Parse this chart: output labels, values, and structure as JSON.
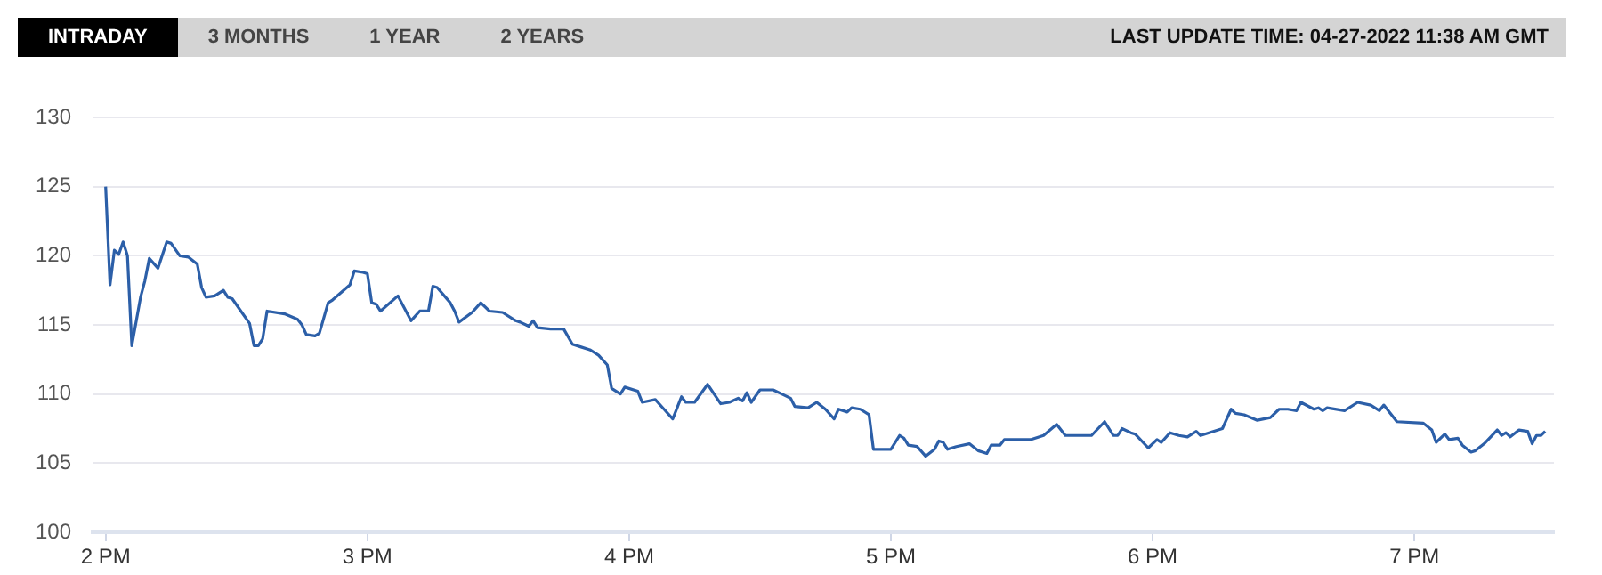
{
  "chart_data": {
    "type": "line",
    "annotations": [
      "INTRADAY",
      "3 MONTHS",
      "1 YEAR",
      "2 YEARS",
      "LAST UPDATE TIME: 04-27-2022 11:38 AM GMT"
    ],
    "xlim": [
      "2022-04-27T13:57",
      "2022-04-27T19:32"
    ],
    "xticks": [
      {
        "value": "2022-04-27T14:00",
        "label": "2 PM"
      },
      {
        "value": "2022-04-27T15:00",
        "label": "3 PM"
      },
      {
        "value": "2022-04-27T16:00",
        "label": "4 PM"
      },
      {
        "value": "2022-04-27T17:00",
        "label": "5 PM"
      },
      {
        "value": "2022-04-27T18:00",
        "label": "6 PM"
      },
      {
        "value": "2022-04-27T19:00",
        "label": "7 PM"
      }
    ],
    "ylim": [
      100,
      130
    ],
    "yticks": [
      100,
      105,
      110,
      115,
      120,
      125,
      130
    ],
    "grid": "y",
    "marker": "none",
    "line_style": "solid",
    "series": [
      {
        "color": "#2c5fa8",
        "x": [
          "2022-04-27T14:00",
          "2022-04-27T14:01",
          "2022-04-27T14:02",
          "2022-04-27T14:03",
          "2022-04-27T14:04",
          "2022-04-27T14:05",
          "2022-04-27T14:06",
          "2022-04-27T14:08",
          "2022-04-27T14:09",
          "2022-04-27T14:10",
          "2022-04-27T14:12",
          "2022-04-27T14:14",
          "2022-04-27T14:15",
          "2022-04-27T14:17",
          "2022-04-27T14:19",
          "2022-04-27T14:21",
          "2022-04-27T14:22",
          "2022-04-27T14:23",
          "2022-04-27T14:25",
          "2022-04-27T14:27",
          "2022-04-27T14:28",
          "2022-04-27T14:29",
          "2022-04-27T14:33",
          "2022-04-27T14:34",
          "2022-04-27T14:35",
          "2022-04-27T14:36",
          "2022-04-27T14:37",
          "2022-04-27T14:41",
          "2022-04-27T14:44",
          "2022-04-27T14:45",
          "2022-04-27T14:46",
          "2022-04-27T14:48",
          "2022-04-27T14:49",
          "2022-04-27T14:51",
          "2022-04-27T14:52",
          "2022-04-27T14:56",
          "2022-04-27T14:57",
          "2022-04-27T14:59",
          "2022-04-27T15:00",
          "2022-04-27T15:01",
          "2022-04-27T15:02",
          "2022-04-27T15:03",
          "2022-04-27T15:07",
          "2022-04-27T15:10",
          "2022-04-27T15:12",
          "2022-04-27T15:14",
          "2022-04-27T15:15",
          "2022-04-27T15:16",
          "2022-04-27T15:19",
          "2022-04-27T15:20",
          "2022-04-27T15:21",
          "2022-04-27T15:24",
          "2022-04-27T15:26",
          "2022-04-27T15:28",
          "2022-04-27T15:31",
          "2022-04-27T15:34",
          "2022-04-27T15:35",
          "2022-04-27T15:37",
          "2022-04-27T15:38",
          "2022-04-27T15:39",
          "2022-04-27T15:42",
          "2022-04-27T15:45",
          "2022-04-27T15:47",
          "2022-04-27T15:49",
          "2022-04-27T15:51",
          "2022-04-27T15:53",
          "2022-04-27T15:55",
          "2022-04-27T15:56",
          "2022-04-27T15:58",
          "2022-04-27T15:59",
          "2022-04-27T16:02",
          "2022-04-27T16:03",
          "2022-04-27T16:06",
          "2022-04-27T16:08",
          "2022-04-27T16:10",
          "2022-04-27T16:12",
          "2022-04-27T16:13",
          "2022-04-27T16:15",
          "2022-04-27T16:18",
          "2022-04-27T16:21",
          "2022-04-27T16:23",
          "2022-04-27T16:25",
          "2022-04-27T16:26",
          "2022-04-27T16:27",
          "2022-04-27T16:28",
          "2022-04-27T16:30",
          "2022-04-27T16:33",
          "2022-04-27T16:35",
          "2022-04-27T16:37",
          "2022-04-27T16:38",
          "2022-04-27T16:41",
          "2022-04-27T16:43",
          "2022-04-27T16:45",
          "2022-04-27T16:47",
          "2022-04-27T16:48",
          "2022-04-27T16:50",
          "2022-04-27T16:51",
          "2022-04-27T16:53",
          "2022-04-27T16:55",
          "2022-04-27T16:56",
          "2022-04-27T17:00",
          "2022-04-27T17:02",
          "2022-04-27T17:03",
          "2022-04-27T17:04",
          "2022-04-27T17:06",
          "2022-04-27T17:08",
          "2022-04-27T17:10",
          "2022-04-27T17:11",
          "2022-04-27T17:12",
          "2022-04-27T17:13",
          "2022-04-27T17:15",
          "2022-04-27T17:18",
          "2022-04-27T17:20",
          "2022-04-27T17:22",
          "2022-04-27T17:23",
          "2022-04-27T17:25",
          "2022-04-27T17:26",
          "2022-04-27T17:32",
          "2022-04-27T17:35",
          "2022-04-27T17:38",
          "2022-04-27T17:40",
          "2022-04-27T17:46",
          "2022-04-27T17:49",
          "2022-04-27T17:51",
          "2022-04-27T17:52",
          "2022-04-27T17:53",
          "2022-04-27T17:55",
          "2022-04-27T17:56",
          "2022-04-27T17:59",
          "2022-04-27T18:01",
          "2022-04-27T18:02",
          "2022-04-27T18:04",
          "2022-04-27T18:06",
          "2022-04-27T18:08",
          "2022-04-27T18:10",
          "2022-04-27T18:11",
          "2022-04-27T18:16",
          "2022-04-27T18:18",
          "2022-04-27T18:19",
          "2022-04-27T18:21",
          "2022-04-27T18:24",
          "2022-04-27T18:27",
          "2022-04-27T18:29",
          "2022-04-27T18:31",
          "2022-04-27T18:33",
          "2022-04-27T18:34",
          "2022-04-27T18:37",
          "2022-04-27T18:38",
          "2022-04-27T18:39",
          "2022-04-27T18:40",
          "2022-04-27T18:44",
          "2022-04-27T18:47",
          "2022-04-27T18:50",
          "2022-04-27T18:52",
          "2022-04-27T18:53",
          "2022-04-27T18:56",
          "2022-04-27T19:02",
          "2022-04-27T19:04",
          "2022-04-27T19:05",
          "2022-04-27T19:07",
          "2022-04-27T19:08",
          "2022-04-27T19:10",
          "2022-04-27T19:11",
          "2022-04-27T19:13",
          "2022-04-27T19:14",
          "2022-04-27T19:16",
          "2022-04-27T19:19",
          "2022-04-27T19:20",
          "2022-04-27T19:21",
          "2022-04-27T19:22",
          "2022-04-27T19:24",
          "2022-04-27T19:26",
          "2022-04-27T19:27",
          "2022-04-27T19:28",
          "2022-04-27T19:29",
          "2022-04-27T19:30"
        ],
        "values": [
          125,
          117.9,
          120.4,
          120.1,
          121,
          120,
          113.5,
          117,
          118.2,
          119.8,
          119.1,
          121,
          120.9,
          120,
          119.9,
          119.4,
          117.7,
          117,
          117.1,
          117.5,
          117,
          116.9,
          115.1,
          113.5,
          113.5,
          114.0,
          116.0,
          115.8,
          115.4,
          115.0,
          114.3,
          114.2,
          114.4,
          116.6,
          116.8,
          117.9,
          118.9,
          118.8,
          118.7,
          116.6,
          116.5,
          116,
          117.1,
          115.3,
          116,
          116,
          117.8,
          117.7,
          116.6,
          116,
          115.2,
          115.9,
          116.6,
          116,
          115.9,
          115.3,
          115.2,
          114.9,
          115.3,
          114.8,
          114.7,
          114.7,
          113.6,
          113.4,
          113.2,
          112.8,
          112.1,
          110.4,
          110.0,
          110.5,
          110.2,
          109.4,
          109.6,
          108.9,
          108.2,
          109.8,
          109.4,
          109.4,
          110.7,
          109.3,
          109.4,
          109.7,
          109.5,
          110.1,
          109.4,
          110.3,
          110.3,
          110.0,
          109.7,
          109.1,
          109.0,
          109.4,
          108.9,
          108.2,
          108.9,
          108.7,
          109.0,
          108.9,
          108.5,
          106.0,
          106.0,
          107.0,
          106.8,
          106.3,
          106.2,
          105.5,
          106.0,
          106.6,
          106.5,
          106.0,
          106.2,
          106.4,
          105.9,
          105.7,
          106.3,
          106.3,
          106.7,
          106.7,
          107.0,
          107.8,
          107.0,
          107.0,
          108.0,
          107.0,
          107.0,
          107.5,
          107.2,
          107.1,
          106.1,
          106.7,
          106.5,
          107.2,
          107.0,
          106.9,
          107.3,
          107.0,
          107.5,
          108.9,
          108.6,
          108.5,
          108.1,
          108.3,
          108.9,
          108.9,
          108.8,
          109.4,
          108.9,
          109.0,
          108.8,
          109.0,
          108.8,
          109.4,
          109.2,
          108.8,
          109.2,
          108.0,
          107.9,
          107.4,
          106.5,
          107.1,
          106.7,
          106.8,
          106.3,
          105.8,
          105.9,
          106.4,
          107.4,
          107.0,
          107.2,
          106.9,
          107.4,
          107.3,
          106.4,
          107.0,
          107.0,
          107.3
        ]
      }
    ]
  }
}
